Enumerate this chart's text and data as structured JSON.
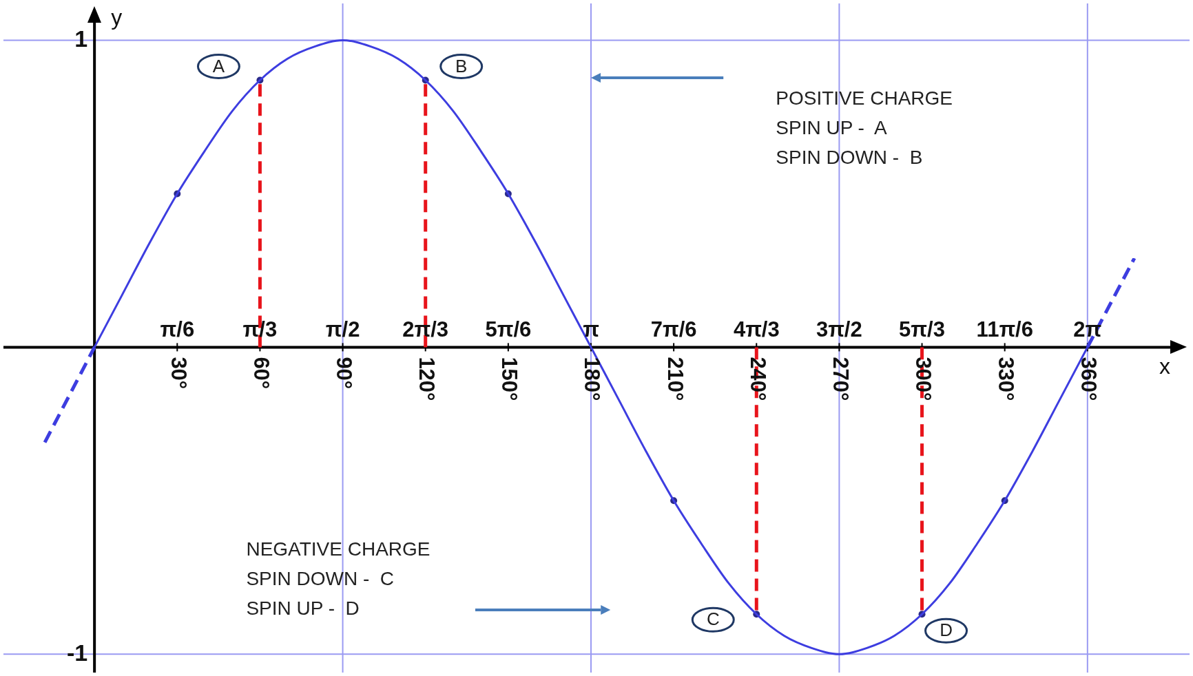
{
  "chart_data": {
    "type": "line",
    "xlabel": "x",
    "ylabel": "y",
    "xlim": [
      -33,
      397
    ],
    "ylim": [
      -1.06,
      1.12
    ],
    "x2lim": [
      -0.576,
      6.929
    ],
    "xticks": [
      {
        "value": 30,
        "label": "30°"
      },
      {
        "value": 60,
        "label": "60°"
      },
      {
        "value": 90,
        "label": "90°"
      },
      {
        "value": 120,
        "label": "120°"
      },
      {
        "value": 150,
        "label": "150°"
      },
      {
        "value": 180,
        "label": "180°"
      },
      {
        "value": 210,
        "label": "210°"
      },
      {
        "value": 240,
        "label": "240°"
      },
      {
        "value": 270,
        "label": "270°"
      },
      {
        "value": 300,
        "label": "300°"
      },
      {
        "value": 330,
        "label": "330°"
      },
      {
        "value": 360,
        "label": "360°"
      }
    ],
    "x2ticks": [
      {
        "value": 0.524,
        "label": "π/6"
      },
      {
        "value": 1.047,
        "label": "π/3"
      },
      {
        "value": 1.571,
        "label": "π/2"
      },
      {
        "value": 2.094,
        "label": "2π/3"
      },
      {
        "value": 2.618,
        "label": "5π/6"
      },
      {
        "value": 3.142,
        "label": "π"
      },
      {
        "value": 3.665,
        "label": "7π/6"
      },
      {
        "value": 4.189,
        "label": "4π/3"
      },
      {
        "value": 4.712,
        "label": "3π/2"
      },
      {
        "value": 5.236,
        "label": "5π/3"
      },
      {
        "value": 5.76,
        "label": "11π/6"
      },
      {
        "value": 6.283,
        "label": "2π"
      }
    ],
    "yticks": [
      -1,
      1
    ],
    "ref_lines": [
      {
        "axis": "x",
        "value": 90,
        "color": "#9a9af2"
      },
      {
        "axis": "x",
        "value": 180,
        "color": "#9a9af2"
      },
      {
        "axis": "x",
        "value": 270,
        "color": "#9a9af2"
      },
      {
        "axis": "x",
        "value": 360,
        "color": "#9a9af2"
      },
      {
        "axis": "y",
        "value": 1,
        "color": "#9a9af2"
      },
      {
        "axis": "y",
        "value": -1,
        "color": "#9a9af2"
      }
    ],
    "series": [
      {
        "color": "#3d3de0",
        "line_style": "solid",
        "marker": "none",
        "x": [
          0,
          10,
          20,
          30,
          40,
          50,
          60,
          70,
          80,
          90,
          100,
          110,
          120,
          130,
          140,
          150,
          160,
          170,
          180,
          190,
          200,
          210,
          220,
          230,
          240,
          250,
          260,
          270,
          280,
          290,
          300,
          310,
          320,
          330,
          340,
          350,
          360
        ],
        "values": [
          0,
          0.17,
          0.34,
          0.5,
          0.64,
          0.77,
          0.87,
          0.94,
          0.98,
          1,
          0.98,
          0.94,
          0.87,
          0.77,
          0.64,
          0.5,
          0.34,
          0.17,
          0,
          -0.17,
          -0.34,
          -0.5,
          -0.64,
          -0.77,
          -0.87,
          -0.94,
          -0.98,
          -1,
          -0.98,
          -0.94,
          -0.87,
          -0.77,
          -0.64,
          -0.5,
          -0.34,
          -0.17,
          0
        ]
      },
      {
        "type": "line",
        "color": "#3d3de0",
        "line_style": "dashed",
        "marker": "none",
        "x": [
          -18,
          0
        ],
        "values": [
          -0.31,
          0
        ]
      },
      {
        "type": "line",
        "color": "#3d3de0",
        "line_style": "dashed",
        "marker": "none",
        "x": [
          360,
          377
        ],
        "values": [
          0,
          0.29
        ]
      },
      {
        "type": "line",
        "color": "#e8141b",
        "line_style": "dashed",
        "marker": "none",
        "x": [
          60,
          60
        ],
        "values": [
          0,
          0.87
        ]
      },
      {
        "type": "line",
        "color": "#e8141b",
        "line_style": "dashed",
        "marker": "none",
        "x": [
          120,
          120
        ],
        "values": [
          0,
          0.87
        ]
      },
      {
        "type": "line",
        "color": "#e8141b",
        "line_style": "dashed",
        "marker": "none",
        "x": [
          240,
          240
        ],
        "values": [
          0,
          -0.87
        ]
      },
      {
        "type": "line",
        "color": "#e8141b",
        "line_style": "dashed",
        "marker": "none",
        "x": [
          300,
          300
        ],
        "values": [
          0,
          -0.87
        ]
      },
      {
        "type": "scatter",
        "color": "#2a2a8a",
        "marker": "circle",
        "x": [
          30,
          60,
          120,
          150,
          210,
          240,
          300,
          330
        ],
        "values": [
          0.5,
          0.87,
          0.87,
          0.5,
          -0.5,
          -0.87,
          -0.87,
          -0.5
        ]
      }
    ],
    "annotations": [
      {
        "text": "A",
        "x": 60,
        "y": 0.87
      },
      {
        "text": "B",
        "x": 120,
        "y": 0.87
      },
      {
        "text": "C",
        "x": 240,
        "y": -0.87
      },
      {
        "text": "D",
        "x": 300,
        "y": -0.87
      },
      "POSITIVE CHARGE\nSPIN UP -  A\nSPIN DOWN -  B",
      "NEGATIVE CHARGE\nSPIN DOWN -  C\nSPIN UP -  D"
    ]
  }
}
